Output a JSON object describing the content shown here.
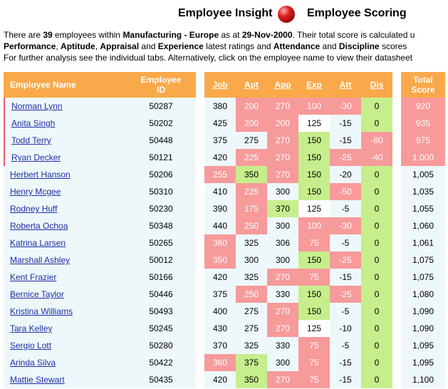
{
  "header": {
    "left_title": "Employee Insight",
    "right_title": "Employee Scoring"
  },
  "intro": {
    "l1_a": "There are ",
    "count": "39",
    "l1_b": " employees within ",
    "division": "Manufacturing",
    "dash": " - ",
    "region": "Europe",
    "l1_c": " as at ",
    "date": "29-Nov-2000",
    "l1_d": ". Their total score is calculated u",
    "perf": "Performance",
    "comma1": ", ",
    "apt": "Aptitude",
    "comma2": ", ",
    "appr": "Appraisal",
    "and1": " and ",
    "exp": "Experience",
    "l2_b": " latest ratings and ",
    "att": "Attendance",
    "and2": " and ",
    "disc": "Discipline",
    "l2_c": " scores",
    "line3": "For further analysis see the individual tabs. Alternatively, click on the employee name to view their datasheet"
  },
  "table": {
    "headers": {
      "name": "Employee Name",
      "id_line1": "Employee",
      "id_line2": "ID",
      "job": "Job",
      "apt": "Apt",
      "app": "App",
      "exp": "Exp",
      "att": "Att",
      "dis": "Dis",
      "total_line1": "Total",
      "total_line2": "Score"
    },
    "rows": [
      {
        "name": "Norman Lynn",
        "id": "50287",
        "job": "380",
        "apt": "200",
        "app": "270",
        "exp": "100",
        "att": "-30",
        "dis": "0",
        "total": "920"
      },
      {
        "name": "Anita Singh",
        "id": "50202",
        "job": "425",
        "apt": "200",
        "app": "200",
        "exp": "125",
        "att": "-15",
        "dis": "0",
        "total": "935"
      },
      {
        "name": "Todd Terry",
        "id": "50448",
        "job": "375",
        "apt": "275",
        "app": "270",
        "exp": "150",
        "att": "-15",
        "dis": "-80",
        "total": "975"
      },
      {
        "name": "Ryan Decker",
        "id": "50121",
        "job": "420",
        "apt": "225",
        "app": "270",
        "exp": "150",
        "att": "-25",
        "dis": "-40",
        "total": "1,000"
      },
      {
        "name": "Herbert Hanson",
        "id": "50206",
        "job": "255",
        "apt": "350",
        "app": "270",
        "exp": "150",
        "att": "-20",
        "dis": "0",
        "total": "1,005"
      },
      {
        "name": "Henry Mcgee",
        "id": "50310",
        "job": "410",
        "apt": "225",
        "app": "300",
        "exp": "150",
        "att": "-50",
        "dis": "0",
        "total": "1,035"
      },
      {
        "name": "Rodney Huff",
        "id": "50230",
        "job": "390",
        "apt": "175",
        "app": "370",
        "exp": "125",
        "att": "-5",
        "dis": "0",
        "total": "1,055"
      },
      {
        "name": "Roberta Ochoa",
        "id": "50348",
        "job": "440",
        "apt": "250",
        "app": "300",
        "exp": "100",
        "att": "-30",
        "dis": "0",
        "total": "1,060"
      },
      {
        "name": "Katrina Larsen",
        "id": "50265",
        "job": "360",
        "apt": "325",
        "app": "306",
        "exp": "75",
        "att": "-5",
        "dis": "0",
        "total": "1,061"
      },
      {
        "name": "Marshall Ashley",
        "id": "50012",
        "job": "350",
        "apt": "300",
        "app": "300",
        "exp": "150",
        "att": "-25",
        "dis": "0",
        "total": "1,075"
      },
      {
        "name": "Kent Frazier",
        "id": "50166",
        "job": "420",
        "apt": "325",
        "app": "270",
        "exp": "75",
        "att": "-15",
        "dis": "0",
        "total": "1,075"
      },
      {
        "name": "Bernice Taylor",
        "id": "50446",
        "job": "375",
        "apt": "250",
        "app": "330",
        "exp": "150",
        "att": "-25",
        "dis": "0",
        "total": "1,080"
      },
      {
        "name": "Kristina Williams",
        "id": "50493",
        "job": "400",
        "apt": "275",
        "app": "270",
        "exp": "150",
        "att": "-5",
        "dis": "0",
        "total": "1,090"
      },
      {
        "name": "Tara Kelley",
        "id": "50245",
        "job": "430",
        "apt": "275",
        "app": "270",
        "exp": "125",
        "att": "-10",
        "dis": "0",
        "total": "1,090"
      },
      {
        "name": "Sergio Lott",
        "id": "50280",
        "job": "370",
        "apt": "325",
        "app": "330",
        "exp": "75",
        "att": "-5",
        "dis": "0",
        "total": "1,095"
      },
      {
        "name": "Arinda Silva",
        "id": "50422",
        "job": "360",
        "apt": "375",
        "app": "300",
        "exp": "75",
        "att": "-15",
        "dis": "0",
        "total": "1,095"
      },
      {
        "name": "Mattie Stewart",
        "id": "50435",
        "job": "420",
        "apt": "350",
        "app": "270",
        "exp": "75",
        "att": "-15",
        "dis": "0",
        "total": "1,100"
      }
    ],
    "cell_colors": [
      {
        "job": "",
        "apt": "red",
        "app": "red",
        "exp": "red",
        "att": "red",
        "dis": "green",
        "total": "red"
      },
      {
        "job": "",
        "apt": "red",
        "app": "red",
        "exp": "white",
        "att": "",
        "dis": "green",
        "total": "red"
      },
      {
        "job": "",
        "apt": "",
        "app": "red",
        "exp": "green",
        "att": "",
        "dis": "red",
        "total": "red"
      },
      {
        "job": "",
        "apt": "red",
        "app": "red",
        "exp": "green",
        "att": "red",
        "dis": "red",
        "total": "red"
      },
      {
        "job": "red",
        "apt": "green",
        "app": "red",
        "exp": "green",
        "att": "",
        "dis": "green",
        "total": ""
      },
      {
        "job": "",
        "apt": "red",
        "app": "",
        "exp": "green",
        "att": "red",
        "dis": "green",
        "total": ""
      },
      {
        "job": "",
        "apt": "red",
        "app": "green",
        "exp": "white",
        "att": "",
        "dis": "green",
        "total": ""
      },
      {
        "job": "",
        "apt": "red",
        "app": "",
        "exp": "red",
        "att": "red",
        "dis": "green",
        "total": ""
      },
      {
        "job": "red",
        "apt": "",
        "app": "",
        "exp": "red",
        "att": "",
        "dis": "green",
        "total": ""
      },
      {
        "job": "red",
        "apt": "",
        "app": "",
        "exp": "green",
        "att": "red",
        "dis": "green",
        "total": ""
      },
      {
        "job": "",
        "apt": "",
        "app": "red",
        "exp": "red",
        "att": "",
        "dis": "green",
        "total": ""
      },
      {
        "job": "",
        "apt": "red",
        "app": "",
        "exp": "green",
        "att": "red",
        "dis": "green",
        "total": ""
      },
      {
        "job": "",
        "apt": "",
        "app": "red",
        "exp": "green",
        "att": "",
        "dis": "green",
        "total": ""
      },
      {
        "job": "",
        "apt": "",
        "app": "red",
        "exp": "white",
        "att": "",
        "dis": "green",
        "total": ""
      },
      {
        "job": "",
        "apt": "",
        "app": "",
        "exp": "red",
        "att": "",
        "dis": "green",
        "total": ""
      },
      {
        "job": "red",
        "apt": "green",
        "app": "",
        "exp": "red",
        "att": "",
        "dis": "green",
        "total": ""
      },
      {
        "job": "",
        "apt": "green",
        "app": "red",
        "exp": "red",
        "att": "",
        "dis": "green",
        "total": ""
      }
    ],
    "flagged_rows": [
      0,
      1,
      2,
      3
    ]
  },
  "colors": {
    "header_orange": "#f9a94a",
    "low_red": "#f79a9a",
    "high_green": "#c6ee8c",
    "row_bg": "#eef8fb",
    "link": "#1d2ea5"
  }
}
